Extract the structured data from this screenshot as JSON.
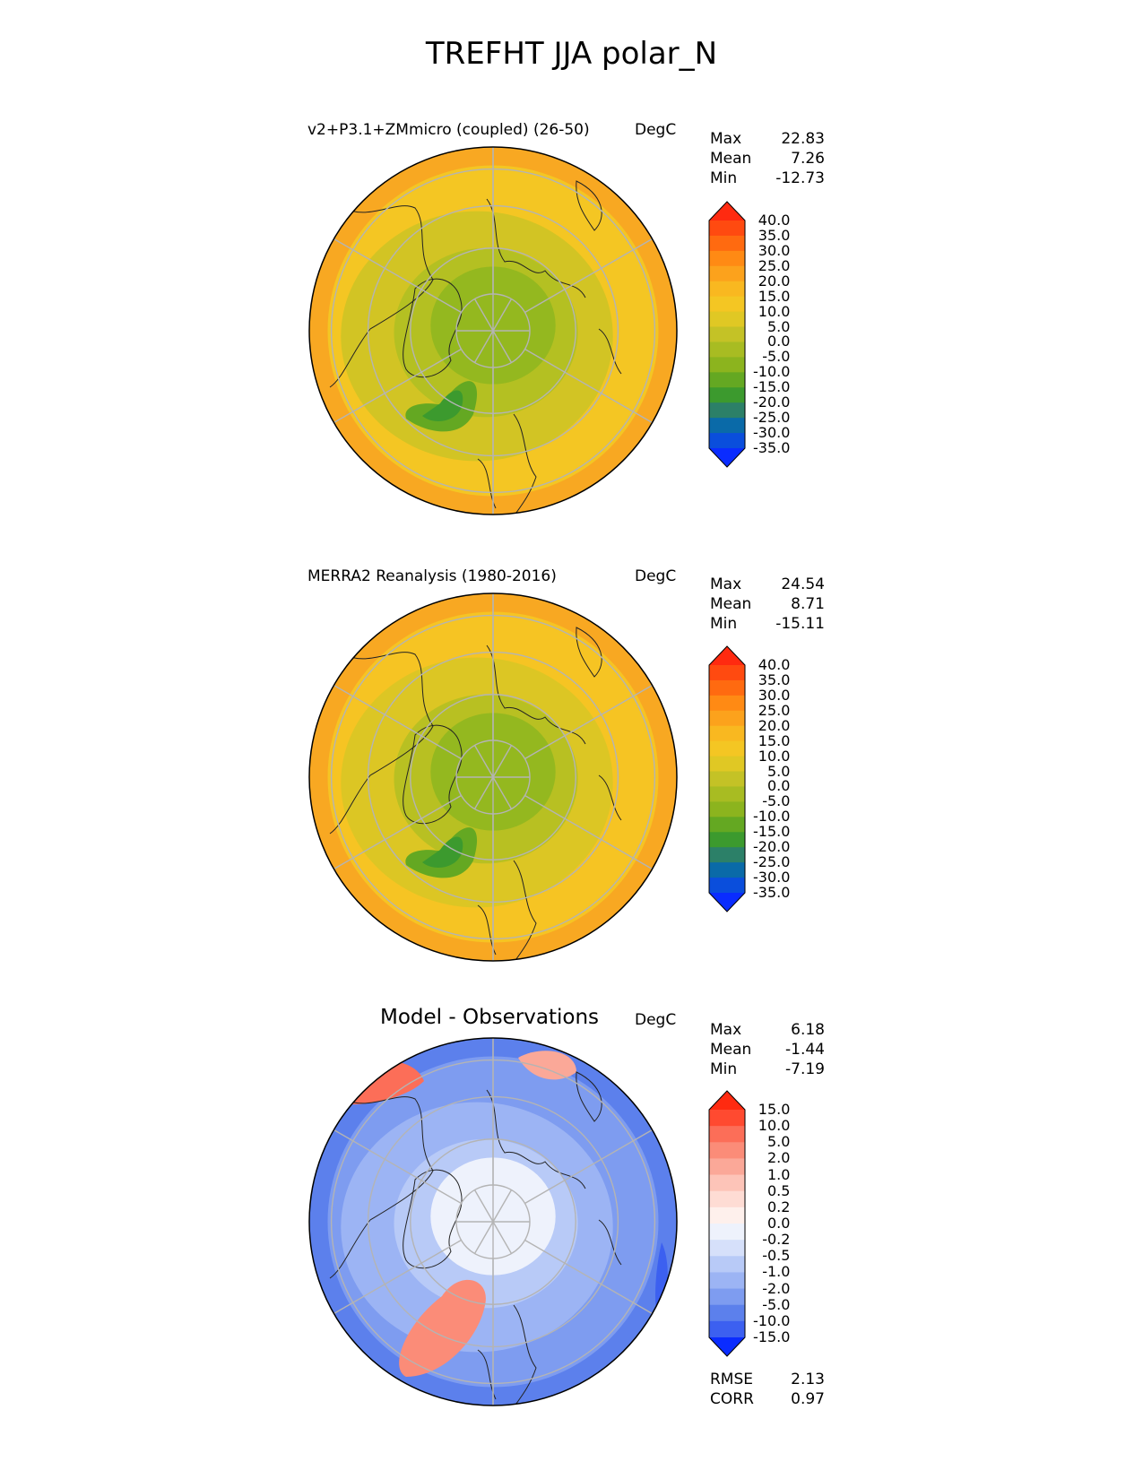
{
  "figure": {
    "title": "TREFHT JJA polar_N"
  },
  "chart_data": [
    {
      "type": "heatmap",
      "projection": "north polar stereographic",
      "title": "v2+P3.1+ZMmicro (coupled) (26-50)",
      "units": "DegC",
      "stats": [
        {
          "label": "Max",
          "value": "22.83"
        },
        {
          "label": "Mean",
          "value": "7.26"
        },
        {
          "label": "Min",
          "value": "-12.73"
        }
      ],
      "colorbar": {
        "levels": [
          "40.0",
          "35.0",
          "30.0",
          "25.0",
          "20.0",
          "15.0",
          "10.0",
          "5.0",
          "0.0",
          "-5.0",
          "-10.0",
          "-15.0",
          "-20.0",
          "-25.0",
          "-30.0",
          "-35.0"
        ],
        "colors": [
          "#ff2a10",
          "#ff4a10",
          "#ff6a10",
          "#ff8a14",
          "#fca21c",
          "#f9b820",
          "#f4c623",
          "#e0c824",
          "#c4c226",
          "#a8bc22",
          "#8cb41e",
          "#64a822",
          "#3c9a2e",
          "#2c8068",
          "#0a6aa8",
          "#0a4edc",
          "#0a2cff"
        ],
        "extends": "both"
      },
      "map": {
        "central": "#94b81f",
        "ring1": "#b4c022",
        "ring2": "#d2c424",
        "outer": "#f4c623",
        "edge": "#f8a822"
      }
    },
    {
      "type": "heatmap",
      "projection": "north polar stereographic",
      "title": "MERRA2 Reanalysis (1980-2016)",
      "units": "DegC",
      "stats": [
        {
          "label": "Max",
          "value": "24.54"
        },
        {
          "label": "Mean",
          "value": "8.71"
        },
        {
          "label": "Min",
          "value": "-15.11"
        }
      ],
      "colorbar": {
        "levels": [
          "40.0",
          "35.0",
          "30.0",
          "25.0",
          "20.0",
          "15.0",
          "10.0",
          "5.0",
          "0.0",
          "-5.0",
          "-10.0",
          "-15.0",
          "-20.0",
          "-25.0",
          "-30.0",
          "-35.0"
        ],
        "colors": [
          "#ff2a10",
          "#ff4a10",
          "#ff6a10",
          "#ff8a14",
          "#fca21c",
          "#f9b820",
          "#f4c623",
          "#e0c824",
          "#c4c226",
          "#a8bc22",
          "#8cb41e",
          "#64a822",
          "#3c9a2e",
          "#2c8068",
          "#0a6aa8",
          "#0a4edc",
          "#0a2cff"
        ],
        "extends": "both"
      },
      "map": {
        "central": "#94b81f",
        "ring1": "#b8c022",
        "ring2": "#dcc624",
        "outer": "#f6c423",
        "edge": "#f8a822"
      }
    },
    {
      "type": "heatmap",
      "projection": "north polar stereographic",
      "title": "Model - Observations",
      "units": "DegC",
      "stats": [
        {
          "label": "Max",
          "value": "6.18"
        },
        {
          "label": "Mean",
          "value": "-1.44"
        },
        {
          "label": "Min",
          "value": "-7.19"
        }
      ],
      "colorbar": {
        "levels": [
          "15.0",
          "10.0",
          "5.0",
          "2.0",
          "1.0",
          "0.5",
          "0.2",
          "0.0",
          "-0.2",
          "-0.5",
          "-1.0",
          "-2.0",
          "-5.0",
          "-10.0",
          "-15.0"
        ],
        "colors": [
          "#ff2a10",
          "#ff4a30",
          "#fc6e58",
          "#fb8c78",
          "#fba898",
          "#fdc4b8",
          "#fedcd4",
          "#fef0ec",
          "#eef2fc",
          "#d6e0fa",
          "#b8caf7",
          "#9cb4f4",
          "#7e9cf0",
          "#5c80ec",
          "#3c60f0",
          "#0a2cff"
        ],
        "extends": "both"
      },
      "map": {
        "central": "#eef2fc",
        "ring1": "#b8caf7",
        "ring2": "#9cb4f4",
        "outer": "#7e9cf0",
        "edge": "#5c80ec"
      },
      "extra_stats": [
        {
          "label": "RMSE",
          "value": "2.13"
        },
        {
          "label": "CORR",
          "value": "0.97"
        }
      ]
    }
  ]
}
